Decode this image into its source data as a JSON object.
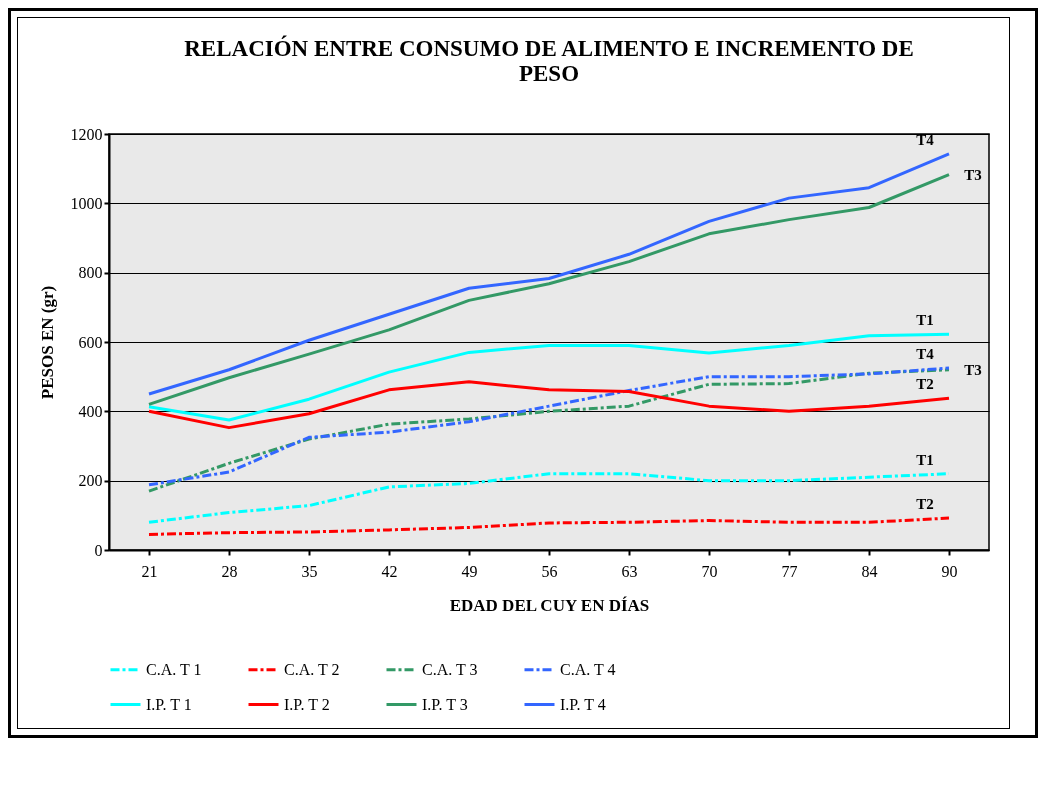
{
  "chart_data": {
    "type": "line",
    "title": "RELACIÓN ENTRE CONSUMO DE ALIMENTO E INCREMENTO DE PESO",
    "xlabel": "EDAD DEL CUY EN DÍAS",
    "ylabel": "PESOS EN (gr)",
    "categories": [
      "21",
      "28",
      "35",
      "42",
      "49",
      "56",
      "63",
      "70",
      "77",
      "84",
      "90"
    ],
    "ylim": [
      0,
      1200
    ],
    "yticks": [
      0,
      200,
      400,
      600,
      800,
      1000,
      1200
    ],
    "grid": "y",
    "legend": "bottom",
    "marker": "none",
    "series": [
      {
        "name": "C.A. T 1",
        "color": "#00ffff",
        "line_style": "dashed",
        "values": [
          80,
          108,
          128,
          182,
          192,
          220,
          220,
          200,
          200,
          210,
          220
        ]
      },
      {
        "name": "C.A. T 2",
        "color": "#ff0000",
        "line_style": "dashed",
        "values": [
          45,
          50,
          52,
          58,
          65,
          78,
          80,
          85,
          80,
          80,
          92
        ]
      },
      {
        "name": "C.A. T 3",
        "color": "#339966",
        "line_style": "dashed",
        "values": [
          170,
          250,
          320,
          363,
          378,
          400,
          415,
          478,
          480,
          510,
          520
        ]
      },
      {
        "name": "C.A. T 4",
        "color": "#3366ff",
        "line_style": "dashed",
        "values": [
          188,
          225,
          325,
          340,
          370,
          415,
          460,
          500,
          500,
          508,
          525
        ]
      },
      {
        "name": "I.P. T 1",
        "color": "#00ffff",
        "line_style": "solid",
        "values": [
          413,
          375,
          435,
          513,
          570,
          590,
          590,
          568,
          590,
          618,
          622
        ]
      },
      {
        "name": "I.P. T 2",
        "color": "#ff0000",
        "line_style": "solid",
        "values": [
          400,
          353,
          393,
          462,
          485,
          462,
          457,
          415,
          400,
          415,
          438
        ]
      },
      {
        "name": "I.P. T 3",
        "color": "#339966",
        "line_style": "solid",
        "values": [
          420,
          497,
          565,
          635,
          720,
          768,
          832,
          912,
          953,
          988,
          1083
        ]
      },
      {
        "name": "I.P. T 4",
        "color": "#3366ff",
        "line_style": "solid",
        "values": [
          450,
          520,
          605,
          680,
          755,
          783,
          853,
          948,
          1015,
          1045,
          1143
        ]
      }
    ],
    "annotations": [
      {
        "text": "T4",
        "x": "90",
        "y": 1143
      },
      {
        "text": "T3",
        "x": "90",
        "y": 1083
      },
      {
        "text": "T1",
        "x": "90",
        "y": 622
      },
      {
        "text": "T4",
        "x": "90",
        "y": 525
      },
      {
        "text": "T3",
        "x": "90",
        "y": 520
      },
      {
        "text": "T2",
        "x": "90",
        "y": 438
      },
      {
        "text": "T1",
        "x": "90",
        "y": 220
      },
      {
        "text": "T2",
        "x": "90",
        "y": 92
      }
    ]
  }
}
